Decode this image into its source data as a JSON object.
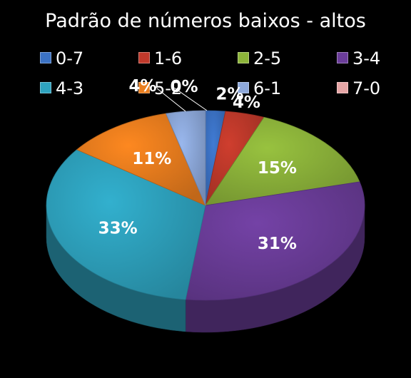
{
  "chart_data": {
    "type": "pie",
    "title": "Padrão de números baixos - altos",
    "categories": [
      "0-7",
      "1-6",
      "2-5",
      "3-4",
      "4-3",
      "5-2",
      "6-1",
      "7-0"
    ],
    "values": [
      2,
      4,
      15,
      31,
      33,
      11,
      4,
      0
    ],
    "data_labels": [
      "2%",
      "4%",
      "15%",
      "31%",
      "33%",
      "11%",
      "4%",
      "0%"
    ],
    "colors": [
      "#3b72c4",
      "#c0392b",
      "#8db43a",
      "#6b3d9a",
      "#2ea3bf",
      "#ea7e1e",
      "#8ea9db",
      "#e6a6a6"
    ],
    "legend_position": "top",
    "style": "3d-pie"
  }
}
